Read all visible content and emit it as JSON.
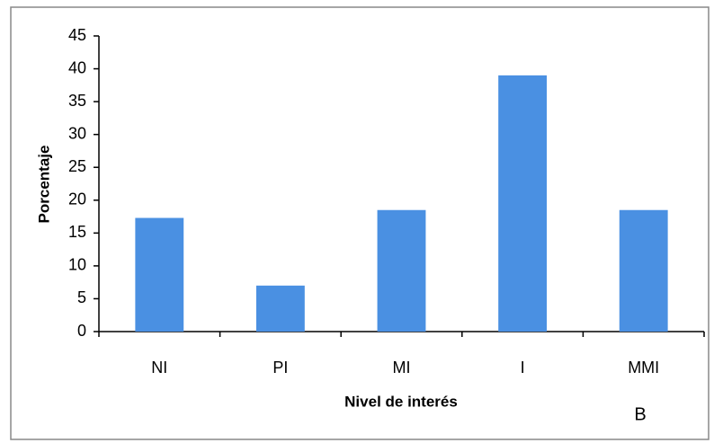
{
  "chart_data": {
    "type": "bar",
    "x_label": "Nivel de interés",
    "y_label": "Porcentaje",
    "categories": [
      "NI",
      "PI",
      "MI",
      "I",
      "MMI"
    ],
    "values": [
      17.3,
      7,
      18.5,
      39,
      18.5
    ],
    "color": "#4a90e2",
    "ylim": [
      0,
      45
    ],
    "yticks": [
      0,
      5,
      10,
      15,
      20,
      25,
      30,
      35,
      40,
      45
    ],
    "grid": false,
    "annotation": "B"
  }
}
